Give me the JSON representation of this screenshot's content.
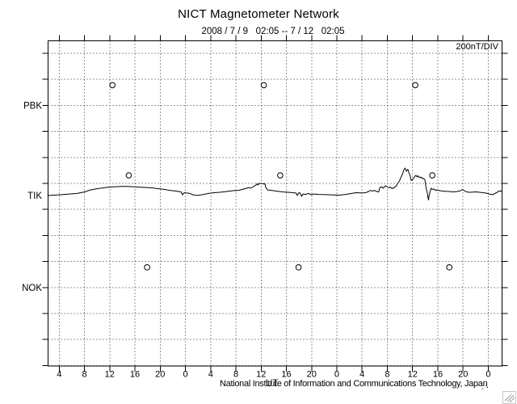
{
  "window": {
    "bg": "#ffffff",
    "fg": "#000000"
  },
  "header": {
    "title": "NICT Magnetometer Network",
    "subtitle": "2008 / 7 / 9   02:05 -- 7 / 12   02:05"
  },
  "plot": {
    "scale_label": "200nT/DIV",
    "x_unit_label": "UT",
    "footer_credit": "National Institute of Information and Communications Technology, Japan",
    "fine_print": "‚‚‚ ″▪"
  },
  "chart_data": {
    "type": "line",
    "title": "NICT Magnetometer Network",
    "subtitle": "2008 / 7 / 9 02:05 -- 7 / 12 02:05",
    "y_scale": "200nT/DIV",
    "x_unit": "UT",
    "grid": "dotted",
    "x_range_hours": [
      2.08,
      74.08
    ],
    "x_tick_interval_hours": 4,
    "x_tick_labels": [
      "4",
      "8",
      "12",
      "16",
      "20",
      "0",
      "4",
      "8",
      "12",
      "16",
      "20",
      "0",
      "4",
      "8",
      "12",
      "16",
      "20",
      "0"
    ],
    "stations": [
      {
        "name": "PBK",
        "has_trace": false,
        "marker_hours": [
          12.3,
          36.3,
          60.3
        ]
      },
      {
        "name": "TIK",
        "has_trace": true,
        "marker_hours": [
          14.9,
          38.9,
          63.0
        ]
      },
      {
        "name": "NOK",
        "has_trace": false,
        "marker_hours": [
          17.8,
          41.8,
          65.7
        ]
      }
    ],
    "marker_offset_nT": 155,
    "series": [
      {
        "name": "TIK",
        "unit": "nT",
        "points_hour_nT": [
          [
            2.0,
            0
          ],
          [
            4.1,
            6
          ],
          [
            6.7,
            16
          ],
          [
            7.9,
            28
          ],
          [
            8.8,
            43
          ],
          [
            9.9,
            53
          ],
          [
            10.9,
            59
          ],
          [
            11.8,
            65
          ],
          [
            12.7,
            68
          ],
          [
            13.7,
            70
          ],
          [
            14.7,
            70
          ],
          [
            15.6,
            68
          ],
          [
            16.5,
            65
          ],
          [
            17.5,
            62
          ],
          [
            18.6,
            59
          ],
          [
            19.5,
            53
          ],
          [
            20.5,
            47
          ],
          [
            21.4,
            40
          ],
          [
            22.4,
            34
          ],
          [
            23.2,
            28
          ],
          [
            23.4,
            6
          ],
          [
            23.7,
            22
          ],
          [
            24.6,
            16
          ],
          [
            25.2,
            3
          ],
          [
            25.9,
            1
          ],
          [
            26.8,
            9
          ],
          [
            27.5,
            16
          ],
          [
            28.4,
            22
          ],
          [
            29.3,
            25
          ],
          [
            30.4,
            31
          ],
          [
            31.4,
            37
          ],
          [
            32.3,
            40
          ],
          [
            32.9,
            47
          ],
          [
            33.6,
            56
          ],
          [
            34.0,
            62
          ],
          [
            34.2,
            56
          ],
          [
            34.6,
            68
          ],
          [
            35.0,
            78
          ],
          [
            35.2,
            90
          ],
          [
            35.4,
            81
          ],
          [
            35.5,
            93
          ],
          [
            36.3,
            90
          ],
          [
            36.5,
            87
          ],
          [
            36.6,
            62
          ],
          [
            36.9,
            43
          ],
          [
            37.5,
            40
          ],
          [
            38.3,
            34
          ],
          [
            39.3,
            28
          ],
          [
            40.2,
            25
          ],
          [
            40.9,
            22
          ],
          [
            41.4,
            19
          ],
          [
            41.6,
            0
          ],
          [
            41.8,
            19
          ],
          [
            42.0,
            22
          ],
          [
            42.3,
            -6
          ],
          [
            42.5,
            12
          ],
          [
            42.9,
            9
          ],
          [
            43.4,
            16
          ],
          [
            43.8,
            6
          ],
          [
            44.2,
            12
          ],
          [
            45.1,
            9
          ],
          [
            46.1,
            7
          ],
          [
            47.3,
            5
          ],
          [
            48.3,
            3
          ],
          [
            49.3,
            9
          ],
          [
            50.2,
            16
          ],
          [
            50.9,
            22
          ],
          [
            51.8,
            20
          ],
          [
            52.4,
            22
          ],
          [
            52.9,
            31
          ],
          [
            53.2,
            39
          ],
          [
            53.6,
            34
          ],
          [
            53.8,
            40
          ],
          [
            54.2,
            31
          ],
          [
            54.5,
            28
          ],
          [
            54.7,
            62
          ],
          [
            55.0,
            68
          ],
          [
            55.2,
            56
          ],
          [
            55.6,
            75
          ],
          [
            55.9,
            65
          ],
          [
            56.1,
            59
          ],
          [
            56.4,
            65
          ],
          [
            56.6,
            53
          ],
          [
            57.0,
            62
          ],
          [
            57.3,
            75
          ],
          [
            57.5,
            93
          ],
          [
            57.8,
            112
          ],
          [
            58.0,
            137
          ],
          [
            58.3,
            168
          ],
          [
            58.5,
            199
          ],
          [
            58.7,
            211
          ],
          [
            58.8,
            199
          ],
          [
            58.9,
            186
          ],
          [
            59.1,
            202
          ],
          [
            59.2,
            193
          ],
          [
            59.3,
            174
          ],
          [
            59.5,
            149
          ],
          [
            59.6,
            124
          ],
          [
            59.7,
            115
          ],
          [
            60.0,
            130
          ],
          [
            60.2,
            146
          ],
          [
            60.4,
            155
          ],
          [
            60.6,
            143
          ],
          [
            60.7,
            152
          ],
          [
            61.0,
            137
          ],
          [
            61.2,
            143
          ],
          [
            61.4,
            130
          ],
          [
            61.5,
            134
          ],
          [
            61.8,
            124
          ],
          [
            61.9,
            99
          ],
          [
            62.0,
            62
          ],
          [
            62.2,
            25
          ],
          [
            62.3,
            -12
          ],
          [
            62.4,
            -34
          ],
          [
            62.5,
            0
          ],
          [
            62.7,
            37
          ],
          [
            62.8,
            56
          ],
          [
            63.0,
            47
          ],
          [
            63.3,
            50
          ],
          [
            63.5,
            40
          ],
          [
            63.8,
            43
          ],
          [
            64.2,
            37
          ],
          [
            64.7,
            34
          ],
          [
            65.2,
            32
          ],
          [
            65.7,
            31
          ],
          [
            66.3,
            28
          ],
          [
            66.9,
            31
          ],
          [
            67.5,
            37
          ],
          [
            67.8,
            47
          ],
          [
            68.0,
            40
          ],
          [
            68.4,
            28
          ],
          [
            68.9,
            25
          ],
          [
            69.4,
            26
          ],
          [
            70.0,
            28
          ],
          [
            70.5,
            25
          ],
          [
            71.0,
            22
          ],
          [
            71.5,
            19
          ],
          [
            72.0,
            12
          ],
          [
            72.4,
            9
          ],
          [
            72.6,
            7
          ],
          [
            72.9,
            16
          ],
          [
            73.3,
            25
          ],
          [
            73.5,
            34
          ],
          [
            73.8,
            36
          ],
          [
            74.0,
            31
          ]
        ]
      }
    ]
  }
}
